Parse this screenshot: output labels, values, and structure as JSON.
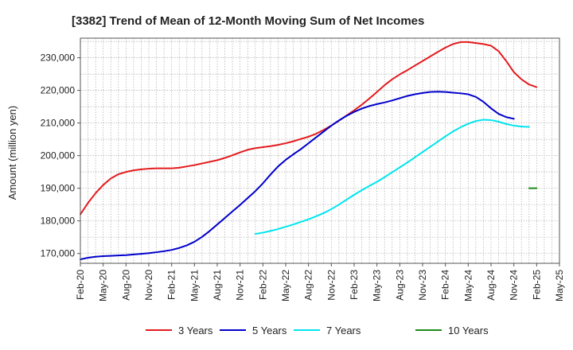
{
  "chart_data": {
    "type": "line",
    "title": "[3382]  Trend of Mean of 12-Month Moving Sum of Net Incomes",
    "xlabel": "",
    "ylabel": "Amount (million yen)",
    "ylim": [
      167000,
      236000
    ],
    "yticks": [
      170000,
      180000,
      190000,
      200000,
      210000,
      220000,
      230000
    ],
    "ytick_labels": [
      "170,000",
      "180,000",
      "190,000",
      "200,000",
      "210,000",
      "220,000",
      "230,000"
    ],
    "xticks": [
      "Feb-20",
      "May-20",
      "Aug-20",
      "Nov-20",
      "Feb-21",
      "May-21",
      "Aug-21",
      "Nov-21",
      "Feb-22",
      "May-22",
      "Aug-22",
      "Nov-22",
      "Feb-23",
      "May-23",
      "Aug-23",
      "Nov-23",
      "Feb-24",
      "May-24",
      "Aug-24",
      "Nov-24",
      "Feb-25",
      "May-25"
    ],
    "x_start": "Feb-20",
    "x_end": "May-25",
    "grid": true,
    "legend_position": "bottom",
    "series": [
      {
        "name": "3 Years",
        "color": "#e41a1c",
        "start": "Feb-20",
        "values": [
          182000,
          185500,
          188500,
          191000,
          193000,
          194300,
          195000,
          195500,
          195800,
          196000,
          196100,
          196100,
          196100,
          196300,
          196700,
          197100,
          197600,
          198100,
          198600,
          199300,
          200100,
          201000,
          201800,
          202300,
          202600,
          202900,
          203300,
          203800,
          204400,
          205100,
          205800,
          206700,
          207900,
          209200,
          210700,
          212300,
          213900,
          215600,
          217500,
          219500,
          221600,
          223400,
          224900,
          226200,
          227600,
          229000,
          230400,
          231800,
          233100,
          234200,
          234800,
          234800,
          234500,
          234200,
          233700,
          232000,
          229000,
          225600,
          223400,
          221800,
          221000
        ]
      },
      {
        "name": "5 Years",
        "color": "#0000cc",
        "start": "Feb-20",
        "values": [
          168200,
          168700,
          169000,
          169200,
          169300,
          169400,
          169500,
          169700,
          169900,
          170100,
          170400,
          170700,
          171100,
          171700,
          172500,
          173600,
          175100,
          176900,
          178900,
          180900,
          182900,
          184900,
          187000,
          189100,
          191500,
          194200,
          196700,
          198700,
          200400,
          202000,
          203800,
          205600,
          207400,
          209200,
          210800,
          212200,
          213400,
          214400,
          215200,
          215800,
          216300,
          216900,
          217600,
          218300,
          218800,
          219200,
          219500,
          219600,
          219500,
          219300,
          219100,
          218800,
          218000,
          216500,
          214500,
          212800,
          211800,
          211300
        ]
      },
      {
        "name": "7 Years",
        "color": "#00e5ee",
        "start": "Jan-22",
        "values": [
          176000,
          176400,
          176900,
          177500,
          178200,
          178900,
          179700,
          180500,
          181400,
          182400,
          183600,
          185000,
          186500,
          188000,
          189400,
          190700,
          192000,
          193400,
          194900,
          196400,
          197900,
          199500,
          201100,
          202700,
          204300,
          205900,
          207400,
          208700,
          209800,
          210600,
          211000,
          210900,
          210400,
          209700,
          209200,
          208900,
          208800
        ]
      },
      {
        "name": "10 Years",
        "color": "#1a8a1a",
        "start": "Jan-25",
        "values": [
          190000,
          190000
        ]
      }
    ]
  }
}
